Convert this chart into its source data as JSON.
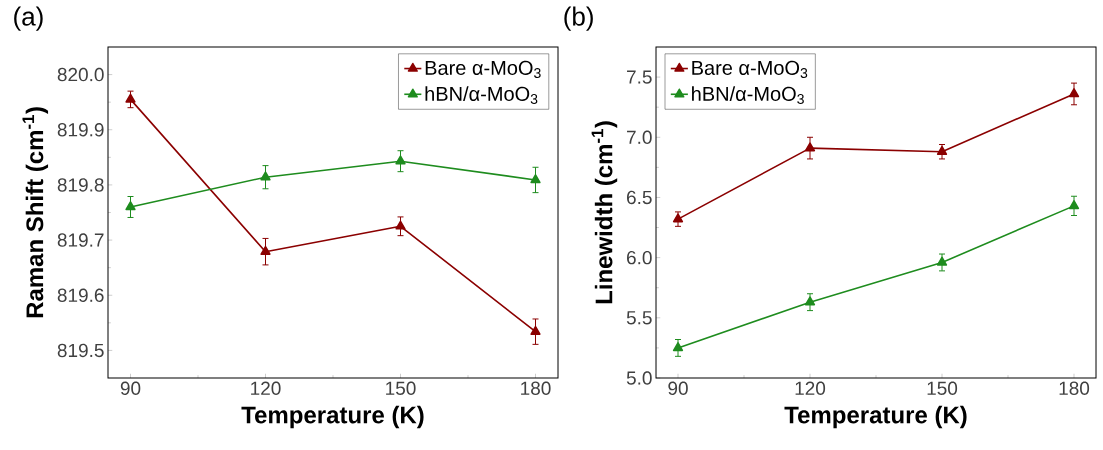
{
  "chart_data": [
    {
      "type": "line",
      "title": "(a)",
      "xlabel": "Temperature (K)",
      "ylabel": "Raman Shift (cm$^{-1}$)",
      "x": [
        90,
        120,
        150,
        180
      ],
      "series": [
        {
          "name": "Bare α-MoO$_{3}$",
          "color": "#8b0000",
          "values": [
            819.955,
            819.679,
            819.725,
            819.534
          ],
          "errors": [
            0.015,
            0.024,
            0.017,
            0.023
          ]
        },
        {
          "name": "hBN/α-MoO$_{3}$",
          "color": "#1e8c1e",
          "values": [
            819.76,
            819.814,
            819.843,
            819.809
          ],
          "errors": [
            0.019,
            0.021,
            0.019,
            0.023
          ]
        }
      ],
      "xlim": [
        85,
        185
      ],
      "xticks": [
        90,
        120,
        150,
        180
      ],
      "ylim": [
        819.45,
        820.05
      ],
      "yticks": [
        {
          "value": 819.5,
          "label": "819.5"
        },
        {
          "value": 819.6,
          "label": "819.6"
        },
        {
          "value": 819.7,
          "label": "819.7"
        },
        {
          "value": 819.8,
          "label": "819.8"
        },
        {
          "value": 819.9,
          "label": "819.9"
        },
        {
          "value": 820.0,
          "label": "820.0"
        }
      ],
      "legend": "top right",
      "marker": "triangle",
      "grid": false
    },
    {
      "type": "line",
      "title": "(b)",
      "xlabel": "Temperature (K)",
      "ylabel": "Linewidth (cm$^{-1}$)",
      "x": [
        90,
        120,
        150,
        180
      ],
      "series": [
        {
          "name": "Bare α-MoO$_{3}$",
          "color": "#8b0000",
          "values": [
            6.32,
            6.91,
            6.88,
            7.36
          ],
          "errors": [
            0.06,
            0.09,
            0.06,
            0.09
          ]
        },
        {
          "name": "hBN/α-MoO$_{3}$",
          "color": "#1e8c1e",
          "values": [
            5.25,
            5.63,
            5.96,
            6.43
          ],
          "errors": [
            0.07,
            0.07,
            0.07,
            0.08
          ]
        }
      ],
      "xlim": [
        85,
        185
      ],
      "xticks": [
        90,
        120,
        150,
        180
      ],
      "ylim": [
        5.0,
        7.75
      ],
      "yticks": [
        {
          "value": 5.0,
          "label": "5.0"
        },
        {
          "value": 5.5,
          "label": "5.5"
        },
        {
          "value": 6.0,
          "label": "6.0"
        },
        {
          "value": 6.5,
          "label": "6.5"
        },
        {
          "value": 7.0,
          "label": "7.0"
        },
        {
          "value": 7.5,
          "label": "7.5"
        }
      ],
      "legend": "top left",
      "marker": "triangle",
      "grid": false
    }
  ]
}
